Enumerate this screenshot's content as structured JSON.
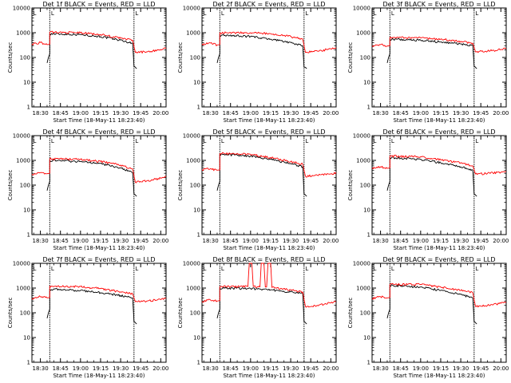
{
  "figure": {
    "x_tick_labels": [
      "18:30",
      "18:45",
      "19:00",
      "19:15",
      "19:30",
      "19:45",
      "20:00"
    ],
    "y_tick_labels": [
      "1",
      "10",
      "100",
      "1000",
      "10000"
    ],
    "ylabel": "Counts/sec",
    "xlabel": "Start Time (18-May-11 18:23:40)",
    "flag_label": "L",
    "colors": {
      "events": "#000000",
      "lld": "#ff0000",
      "axes": "#000000"
    }
  },
  "chart_data": [
    {
      "type": "line",
      "title": "Det 1f BLACK = Events, RED = LLD",
      "xlabel": "Start Time (18-May-11 18:23:40)",
      "ylabel": "Counts/sec",
      "yscale": "log",
      "ylim": [
        1,
        10000
      ],
      "xlim": [
        "18:23:40",
        "20:04:00"
      ],
      "markers": [
        "18:37",
        "19:40"
      ],
      "grid": false,
      "series": [
        {
          "color": "#000000",
          "x": [
            "18:35",
            "18:36",
            "18:37",
            "18:37",
            "19:00",
            "19:15",
            "19:30",
            "19:39",
            "19:40",
            "19:41",
            "19:42"
          ],
          "y": [
            60,
            100,
            140,
            900,
            850,
            700,
            500,
            370,
            45,
            40,
            35
          ]
        },
        {
          "color": "#ff0000",
          "x": [
            "18:23:40",
            "18:30",
            "18:35",
            "18:37",
            "18:37",
            "19:00",
            "19:15",
            "19:30",
            "19:39",
            "19:41",
            "19:50",
            "20:00",
            "20:04"
          ],
          "y": [
            350,
            400,
            330,
            340,
            1050,
            1000,
            850,
            600,
            500,
            160,
            170,
            210,
            230
          ]
        }
      ]
    },
    {
      "type": "line",
      "title": "Det 2f BLACK = Events, RED = LLD",
      "xlabel": "Start Time (18-May-11 18:23:40)",
      "ylabel": "Counts/sec",
      "yscale": "log",
      "ylim": [
        1,
        10000
      ],
      "xlim": [
        "18:23:40",
        "20:04:00"
      ],
      "markers": [
        "18:37",
        "19:40"
      ],
      "grid": false,
      "series": [
        {
          "color": "#000000",
          "x": [
            "18:35",
            "18:36",
            "18:37",
            "18:37",
            "19:00",
            "19:15",
            "19:30",
            "19:39",
            "19:40",
            "19:41",
            "19:42"
          ],
          "y": [
            60,
            100,
            140,
            800,
            700,
            550,
            400,
            300,
            40,
            40,
            35
          ]
        },
        {
          "color": "#ff0000",
          "x": [
            "18:23:40",
            "18:30",
            "18:35",
            "18:37",
            "18:37",
            "19:00",
            "19:15",
            "19:30",
            "19:39",
            "19:41",
            "19:50",
            "20:00",
            "20:04"
          ],
          "y": [
            350,
            380,
            320,
            330,
            1000,
            1000,
            900,
            700,
            550,
            160,
            180,
            220,
            250
          ]
        }
      ]
    },
    {
      "type": "line",
      "title": "Det 3f BLACK = Events, RED = LLD",
      "xlabel": "Start Time (18-May-11 18:23:40)",
      "ylabel": "Counts/sec",
      "yscale": "log",
      "ylim": [
        1,
        10000
      ],
      "xlim": [
        "18:23:40",
        "20:04:00"
      ],
      "markers": [
        "18:37",
        "19:40"
      ],
      "grid": false,
      "series": [
        {
          "color": "#000000",
          "x": [
            "18:35",
            "18:36",
            "18:37",
            "18:37",
            "19:00",
            "19:15",
            "19:30",
            "19:39",
            "19:40",
            "19:41",
            "19:42"
          ],
          "y": [
            60,
            100,
            140,
            550,
            500,
            420,
            350,
            300,
            45,
            40,
            35
          ]
        },
        {
          "color": "#ff0000",
          "x": [
            "18:23:40",
            "18:30",
            "18:35",
            "18:37",
            "18:37",
            "19:00",
            "19:15",
            "19:30",
            "19:39",
            "19:41",
            "19:50",
            "20:00",
            "20:04"
          ],
          "y": [
            300,
            330,
            290,
            300,
            650,
            620,
            550,
            450,
            380,
            170,
            180,
            210,
            230
          ]
        }
      ]
    },
    {
      "type": "line",
      "title": "Det 4f BLACK = Events, RED = LLD",
      "xlabel": "Start Time (18-May-11 18:23:40)",
      "ylabel": "Counts/sec",
      "yscale": "log",
      "ylim": [
        1,
        10000
      ],
      "xlim": [
        "18:23:40",
        "20:04:00"
      ],
      "markers": [
        "18:37",
        "19:40"
      ],
      "grid": false,
      "series": [
        {
          "color": "#000000",
          "x": [
            "18:35",
            "18:36",
            "18:37",
            "18:37",
            "19:00",
            "19:15",
            "19:30",
            "19:39",
            "19:40",
            "19:41",
            "19:42"
          ],
          "y": [
            60,
            100,
            140,
            1000,
            900,
            750,
            500,
            320,
            45,
            40,
            35
          ]
        },
        {
          "color": "#ff0000",
          "x": [
            "18:23:40",
            "18:30",
            "18:35",
            "18:37",
            "18:37",
            "19:00",
            "19:15",
            "19:30",
            "19:39",
            "19:41",
            "19:50",
            "20:00",
            "20:04"
          ],
          "y": [
            280,
            320,
            290,
            300,
            1150,
            1100,
            900,
            650,
            450,
            130,
            150,
            190,
            220
          ]
        }
      ]
    },
    {
      "type": "line",
      "title": "Det 5f BLACK = Events, RED = LLD",
      "xlabel": "Start Time (18-May-11 18:23:40)",
      "ylabel": "Counts/sec",
      "yscale": "log",
      "ylim": [
        1,
        10000
      ],
      "xlim": [
        "18:23:40",
        "20:04:00"
      ],
      "markers": [
        "18:37",
        "19:40"
      ],
      "grid": false,
      "series": [
        {
          "color": "#000000",
          "x": [
            "18:35",
            "18:36",
            "18:37",
            "18:37",
            "19:00",
            "19:15",
            "19:30",
            "19:39",
            "19:40",
            "19:41",
            "19:42"
          ],
          "y": [
            60,
            100,
            140,
            1800,
            1500,
            1100,
            750,
            550,
            45,
            40,
            35
          ]
        },
        {
          "color": "#ff0000",
          "x": [
            "18:23:40",
            "18:30",
            "18:35",
            "18:37",
            "18:37",
            "19:00",
            "19:15",
            "19:30",
            "19:39",
            "19:41",
            "19:50",
            "20:00",
            "20:04"
          ],
          "y": [
            420,
            460,
            400,
            410,
            1900,
            1750,
            1300,
            900,
            700,
            230,
            250,
            280,
            320
          ]
        }
      ]
    },
    {
      "type": "line",
      "title": "Det 6f BLACK = Events, RED = LLD",
      "xlabel": "Start Time (18-May-11 18:23:40)",
      "ylabel": "Counts/sec",
      "yscale": "log",
      "ylim": [
        1,
        10000
      ],
      "xlim": [
        "18:23:40",
        "20:04:00"
      ],
      "markers": [
        "18:37",
        "19:40"
      ],
      "grid": false,
      "series": [
        {
          "color": "#000000",
          "x": [
            "18:35",
            "18:36",
            "18:37",
            "18:37",
            "19:00",
            "19:15",
            "19:30",
            "19:39",
            "19:40",
            "19:41",
            "19:42"
          ],
          "y": [
            60,
            100,
            140,
            1300,
            1100,
            800,
            550,
            400,
            45,
            40,
            35
          ]
        },
        {
          "color": "#ff0000",
          "x": [
            "18:23:40",
            "18:30",
            "18:35",
            "18:37",
            "18:37",
            "19:00",
            "19:15",
            "19:30",
            "19:39",
            "19:41",
            "19:50",
            "20:00",
            "20:04"
          ],
          "y": [
            500,
            550,
            480,
            490,
            1500,
            1400,
            1050,
            800,
            600,
            280,
            300,
            330,
            360
          ]
        }
      ]
    },
    {
      "type": "line",
      "title": "Det 7f BLACK = Events, RED = LLD",
      "xlabel": "Start Time (18-May-11 18:23:40)",
      "ylabel": "Counts/sec",
      "yscale": "log",
      "ylim": [
        1,
        10000
      ],
      "xlim": [
        "18:23:40",
        "20:04:00"
      ],
      "markers": [
        "18:37",
        "19:40"
      ],
      "grid": false,
      "series": [
        {
          "color": "#000000",
          "x": [
            "18:35",
            "18:36",
            "18:37",
            "18:37",
            "19:00",
            "19:15",
            "19:30",
            "19:39",
            "19:40",
            "19:41",
            "19:42"
          ],
          "y": [
            60,
            100,
            140,
            900,
            800,
            650,
            500,
            400,
            45,
            40,
            35
          ]
        },
        {
          "color": "#ff0000",
          "x": [
            "18:23:40",
            "18:30",
            "18:35",
            "18:37",
            "18:37",
            "19:00",
            "19:15",
            "19:30",
            "19:39",
            "19:41",
            "19:50",
            "20:00",
            "20:04"
          ],
          "y": [
            380,
            450,
            400,
            410,
            1200,
            1150,
            950,
            700,
            580,
            280,
            300,
            340,
            380
          ]
        }
      ]
    },
    {
      "type": "line",
      "title": "Det 8f BLACK = Events, RED = LLD",
      "xlabel": "Start Time (18-May-11 18:23:40)",
      "ylabel": "Counts/sec",
      "yscale": "log",
      "ylim": [
        1,
        10000
      ],
      "xlim": [
        "18:23:40",
        "20:04:00"
      ],
      "markers": [
        "18:37",
        "19:40"
      ],
      "grid": false,
      "series": [
        {
          "color": "#000000",
          "x": [
            "18:35",
            "18:36",
            "18:37",
            "18:37",
            "19:00",
            "19:15",
            "19:30",
            "19:39",
            "19:40",
            "19:41",
            "19:42"
          ],
          "y": [
            60,
            100,
            140,
            1000,
            950,
            850,
            700,
            600,
            45,
            40,
            35
          ]
        },
        {
          "color": "#ff0000",
          "x": [
            "18:23:40",
            "18:30",
            "18:35",
            "18:37",
            "18:37",
            "18:58",
            "18:59",
            "19:01",
            "19:02",
            "19:07",
            "19:08",
            "19:10",
            "19:11",
            "19:12",
            "19:13",
            "19:15",
            "19:16",
            "19:30",
            "19:39",
            "19:41",
            "19:50",
            "20:00",
            "20:04"
          ],
          "y": [
            290,
            330,
            300,
            310,
            1150,
            1150,
            10000,
            10000,
            1150,
            1100,
            10000,
            10000,
            1100,
            1100,
            10000,
            10000,
            1050,
            850,
            700,
            180,
            200,
            250,
            280
          ]
        }
      ]
    },
    {
      "type": "line",
      "title": "Det 9f BLACK = Events, RED = LLD",
      "xlabel": "Start Time (18-May-11 18:23:40)",
      "ylabel": "Counts/sec",
      "yscale": "log",
      "ylim": [
        1,
        10000
      ],
      "xlim": [
        "18:23:40",
        "20:04:00"
      ],
      "markers": [
        "18:37",
        "19:40"
      ],
      "grid": false,
      "series": [
        {
          "color": "#000000",
          "x": [
            "18:35",
            "18:36",
            "18:37",
            "18:37",
            "19:00",
            "19:15",
            "19:30",
            "19:39",
            "19:40",
            "19:41",
            "19:42"
          ],
          "y": [
            60,
            100,
            140,
            1300,
            1100,
            800,
            550,
            400,
            45,
            40,
            35
          ]
        },
        {
          "color": "#ff0000",
          "x": [
            "18:23:40",
            "18:30",
            "18:35",
            "18:37",
            "18:37",
            "19:00",
            "19:15",
            "19:30",
            "19:39",
            "19:41",
            "19:50",
            "20:00",
            "20:04"
          ],
          "y": [
            380,
            450,
            400,
            410,
            1400,
            1400,
            1100,
            800,
            650,
            180,
            200,
            240,
            270
          ]
        }
      ]
    }
  ]
}
